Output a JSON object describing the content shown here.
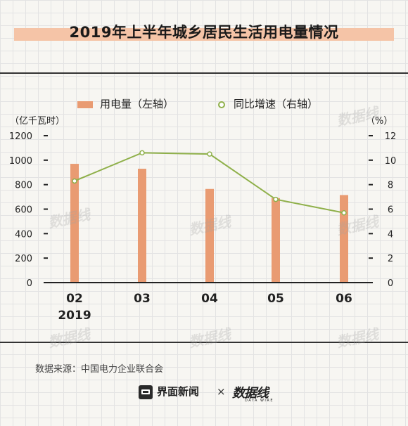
{
  "chart_data": {
    "type": "bar+line",
    "title": "2019年上半年城乡居民生活用电量情况",
    "categories": [
      "02",
      "03",
      "04",
      "05",
      "06"
    ],
    "year_label": "2019",
    "series": [
      {
        "name": "用电量（左轴）",
        "type": "bar",
        "axis": "left",
        "values": [
          970,
          930,
          765,
          690,
          715
        ]
      },
      {
        "name": "同比增速（右轴）",
        "type": "line",
        "axis": "right",
        "values": [
          8.3,
          10.6,
          10.5,
          6.8,
          5.7
        ]
      }
    ],
    "left_axis": {
      "unit": "（亿千瓦时）",
      "ylim": [
        0,
        1200
      ],
      "ticks": [
        "0",
        "200",
        "400",
        "600",
        "800",
        "1000",
        "1200"
      ]
    },
    "right_axis": {
      "unit": "（%）",
      "ylim": [
        0,
        12
      ],
      "ticks": [
        "0",
        "2",
        "4",
        "6",
        "8",
        "10",
        "12"
      ]
    },
    "legend_position": "top",
    "colors": {
      "bar": "#e99b72",
      "line": "#8fb04a",
      "axis": "#222222"
    }
  },
  "legend": {
    "bar_label": "用电量（左轴）",
    "line_label": "同比增速（右轴）"
  },
  "footer": {
    "source": "数据来源：中国电力企业联合会",
    "brand1": "界面新闻",
    "times": "×",
    "brand2": "数据线",
    "brand2_sub": "DATA WIRE"
  },
  "watermark": "数据线"
}
